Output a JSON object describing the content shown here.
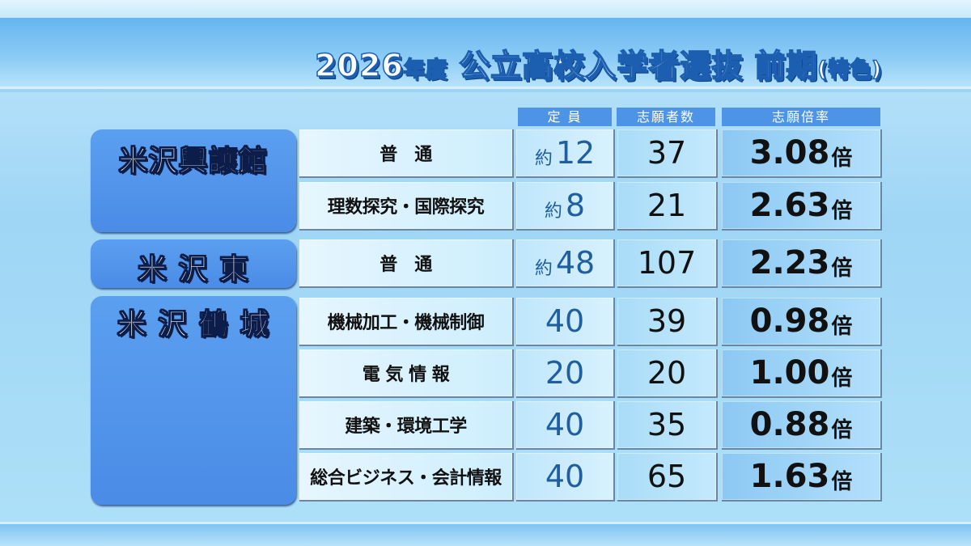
{
  "title": {
    "year": "2026",
    "nendo": "年度",
    "main": "公立高校入学者選抜",
    "phase": "前期",
    "paren": "(特色)"
  },
  "headers": {
    "quota": "定 員",
    "applicants": "志願者数",
    "ratio": "志願倍率"
  },
  "schools": [
    {
      "name": "米沢興譲館",
      "rows": [
        {
          "dept": "普　通",
          "approx": "約",
          "quota": "12",
          "applicants": "37",
          "ratio": "3.08",
          "unit": "倍"
        },
        {
          "dept": "理数探究・国際探究",
          "approx": "約",
          "quota": "8",
          "applicants": "21",
          "ratio": "2.63",
          "unit": "倍"
        }
      ]
    },
    {
      "name": "米 沢 東",
      "rows": [
        {
          "dept": "普　通",
          "approx": "約",
          "quota": "48",
          "applicants": "107",
          "ratio": "2.23",
          "unit": "倍"
        }
      ]
    },
    {
      "name": "米 沢 鶴 城",
      "rows": [
        {
          "dept": "機械加工・機械制御",
          "approx": "",
          "quota": "40",
          "applicants": "39",
          "ratio": "0.98",
          "unit": "倍"
        },
        {
          "dept": "電 気 情 報",
          "approx": "",
          "quota": "20",
          "applicants": "20",
          "ratio": "1.00",
          "unit": "倍"
        },
        {
          "dept": "建築・環境工学",
          "approx": "",
          "quota": "40",
          "applicants": "35",
          "ratio": "0.88",
          "unit": "倍"
        },
        {
          "dept": "総合ビジネス・会計情報",
          "approx": "",
          "quota": "40",
          "applicants": "65",
          "ratio": "1.63",
          "unit": "倍"
        }
      ]
    }
  ]
}
